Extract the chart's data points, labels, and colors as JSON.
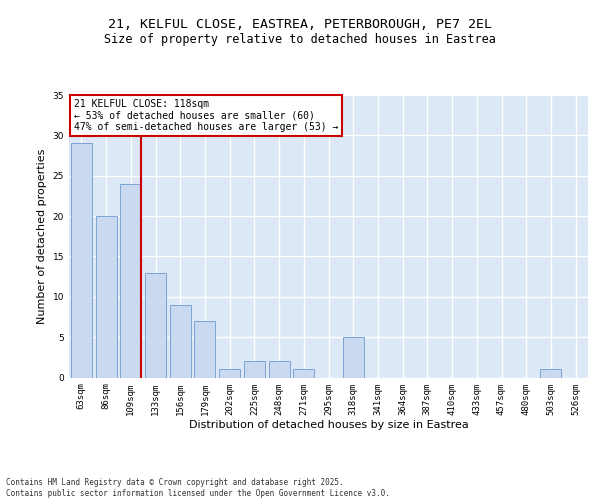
{
  "title1": "21, KELFUL CLOSE, EASTREA, PETERBOROUGH, PE7 2EL",
  "title2": "Size of property relative to detached houses in Eastrea",
  "xlabel": "Distribution of detached houses by size in Eastrea",
  "ylabel": "Number of detached properties",
  "categories": [
    "63sqm",
    "86sqm",
    "109sqm",
    "133sqm",
    "156sqm",
    "179sqm",
    "202sqm",
    "225sqm",
    "248sqm",
    "271sqm",
    "295sqm",
    "318sqm",
    "341sqm",
    "364sqm",
    "387sqm",
    "410sqm",
    "433sqm",
    "457sqm",
    "480sqm",
    "503sqm",
    "526sqm"
  ],
  "values": [
    29,
    20,
    24,
    13,
    9,
    7,
    1,
    2,
    2,
    1,
    0,
    5,
    0,
    0,
    0,
    0,
    0,
    0,
    0,
    1,
    0
  ],
  "bar_color": "#c9d9f0",
  "bar_edge_color": "#7ba3d4",
  "red_line_index": 2,
  "annotation_text": "21 KELFUL CLOSE: 118sqm\n← 53% of detached houses are smaller (60)\n47% of semi-detached houses are larger (53) →",
  "annotation_box_color": "#ffffff",
  "annotation_box_edge_color": "#cc0000",
  "red_line_color": "#cc0000",
  "background_color": "#dce8f5",
  "grid_color": "#ffffff",
  "ylim": [
    0,
    35
  ],
  "yticks": [
    0,
    5,
    10,
    15,
    20,
    25,
    30,
    35
  ],
  "footer": "Contains HM Land Registry data © Crown copyright and database right 2025.\nContains public sector information licensed under the Open Government Licence v3.0.",
  "title_fontsize": 9.5,
  "subtitle_fontsize": 8.5,
  "tick_fontsize": 6.5,
  "ylabel_fontsize": 8,
  "xlabel_fontsize": 8,
  "annotation_fontsize": 7,
  "footer_fontsize": 5.5
}
